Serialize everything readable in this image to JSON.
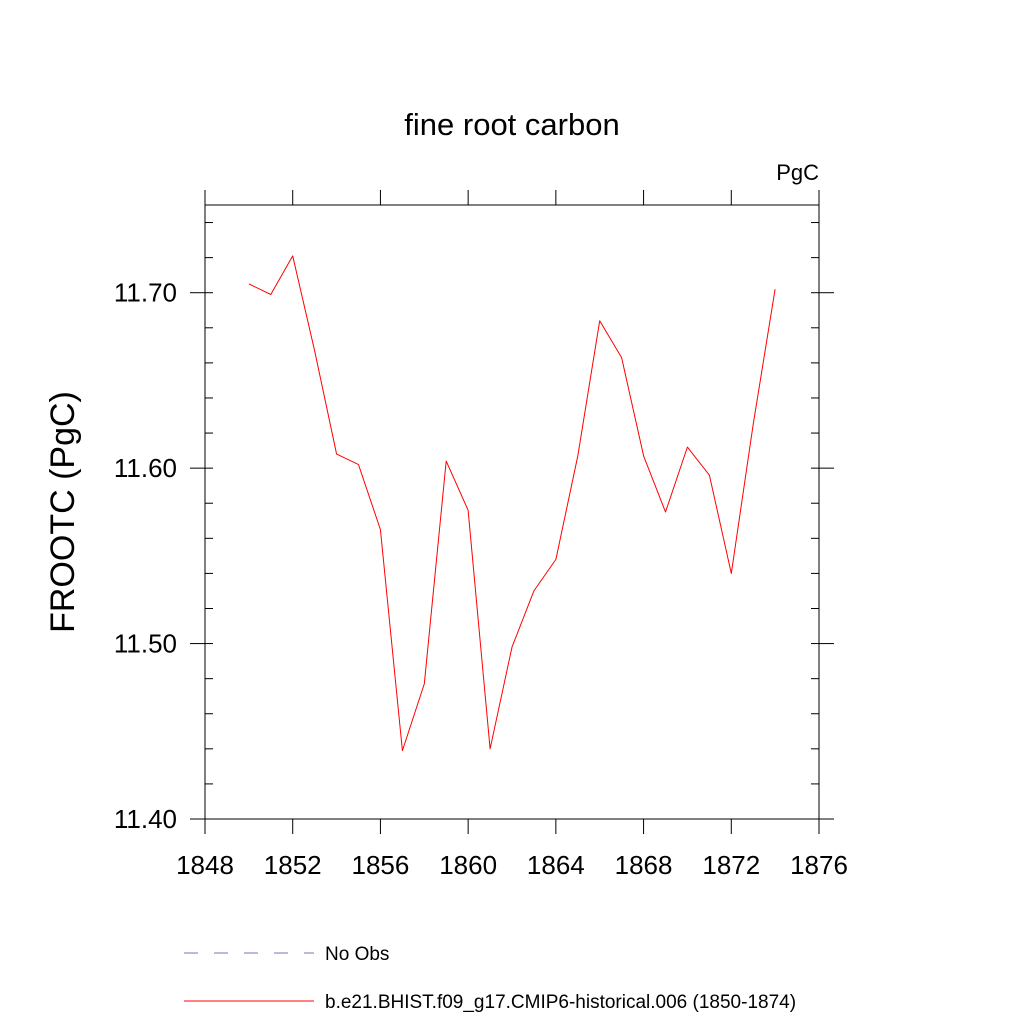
{
  "chart_data": {
    "type": "line",
    "title": "fine root carbon",
    "units_label": "PgC",
    "ylabel": "FROOTC  (PgC)",
    "xlabel": "",
    "xlim": [
      1848,
      1876
    ],
    "ylim": [
      11.4,
      11.75
    ],
    "x_major_ticks": [
      1848,
      1852,
      1856,
      1860,
      1864,
      1868,
      1872,
      1876
    ],
    "x_tick_labels": [
      "1848",
      "1852",
      "1856",
      "1860",
      "1864",
      "1868",
      "1872",
      "1876"
    ],
    "y_major_ticks": [
      11.4,
      11.5,
      11.6,
      11.7
    ],
    "y_tick_labels": [
      "11.40",
      "11.50",
      "11.60",
      "11.70"
    ],
    "series": [
      {
        "name": "b.e21.BHIST.f09_g17.CMIP6-historical.006 (1850-1874)",
        "color": "#ff0000",
        "style": "solid",
        "x": [
          1850,
          1851,
          1852,
          1853,
          1854,
          1855,
          1856,
          1857,
          1858,
          1859,
          1860,
          1861,
          1862,
          1863,
          1864,
          1865,
          1866,
          1867,
          1868,
          1869,
          1870,
          1871,
          1872,
          1873,
          1874
        ],
        "values": [
          11.705,
          11.699,
          11.721,
          11.667,
          11.608,
          11.602,
          11.565,
          11.439,
          11.477,
          11.604,
          11.576,
          11.44,
          11.498,
          11.53,
          11.548,
          11.607,
          11.684,
          11.663,
          11.607,
          11.575,
          11.612,
          11.596,
          11.54,
          11.625,
          11.702
        ]
      }
    ],
    "legend": [
      {
        "label": "No Obs",
        "color": "#7d72b8",
        "style": "dashed"
      },
      {
        "label": "b.e21.BHIST.f09_g17.CMIP6-historical.006 (1850-1874)",
        "color": "#ff0000",
        "style": "solid"
      }
    ]
  }
}
